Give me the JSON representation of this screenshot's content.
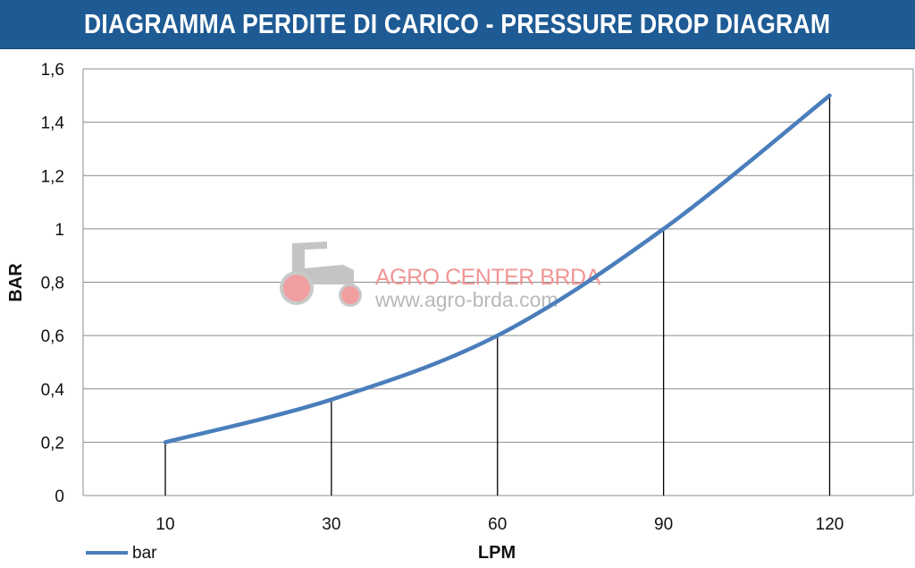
{
  "title": "DIAGRAMMA PERDITE DI CARICO - PRESSURE DROP DIAGRAM",
  "watermark": {
    "name": "AGRO CENTER BRDA",
    "url": "www.agro-brda.com"
  },
  "colors": {
    "title_bg": "#1e5b95",
    "line": "#4a7ebb",
    "watermark_red": "#f19595",
    "watermark_grey": "#bdbdbd"
  },
  "chart_data": {
    "type": "line",
    "categories": [
      "10",
      "30",
      "60",
      "90",
      "120"
    ],
    "series": [
      {
        "name": "bar",
        "values": [
          0.2,
          0.36,
          0.6,
          1.0,
          1.5
        ]
      }
    ],
    "xlabel": "LPM",
    "ylabel": "BAR",
    "ylim": [
      0,
      1.6
    ],
    "yticks": [
      "0",
      "0,2",
      "0,4",
      "0,6",
      "0,8",
      "1",
      "1,2",
      "1,4",
      "1,6"
    ],
    "grid": "horizontal",
    "drop_lines": true,
    "legend": "bottom-left"
  }
}
